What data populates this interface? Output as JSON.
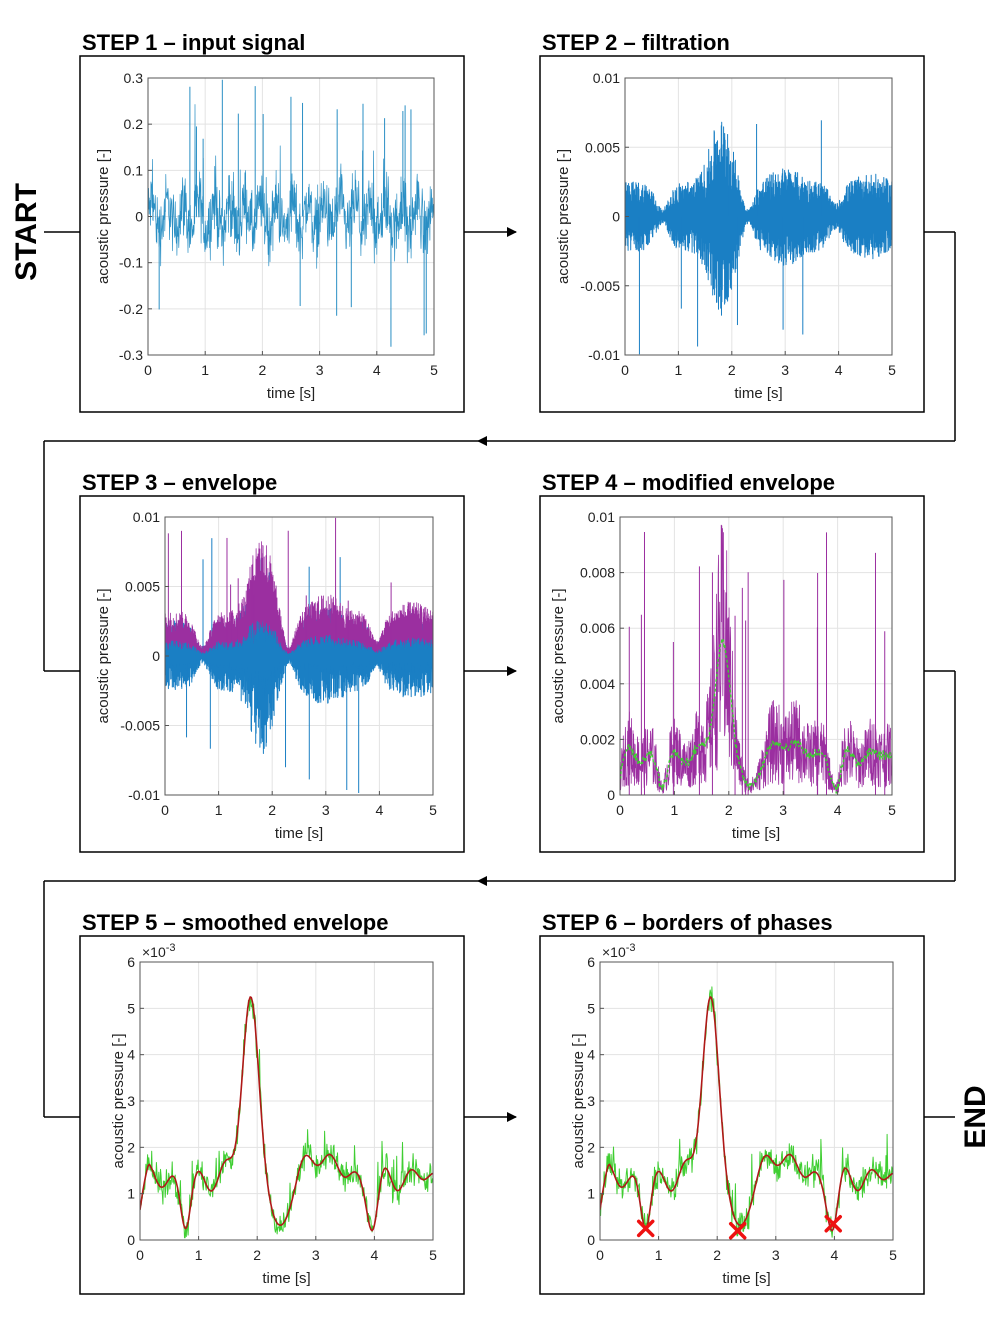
{
  "start_label": "START",
  "end_label": "END",
  "colors": {
    "raw_blue": "#2a8fc4",
    "filtered_blue": "#1a7fc4",
    "envelope_purple": "#9b2fa0",
    "modified_green": "#3fce32",
    "smoothed_red": "#b01818",
    "marker_red": "#ee1111"
  },
  "steps": [
    {
      "title": "STEP 1 – input signal",
      "chart_data": {
        "type": "line",
        "series": [
          {
            "name": "input signal",
            "description": "noisy acoustic signal with spikes"
          }
        ],
        "xlabel": "time [s]",
        "ylabel": "acoustic pressure [-]",
        "xlim": [
          0,
          5
        ],
        "ylim": [
          -0.3,
          0.3
        ],
        "xticks": [
          0,
          1,
          2,
          3,
          4,
          5
        ],
        "yticks": [
          -0.3,
          -0.2,
          -0.1,
          0,
          0.1,
          0.2,
          0.3
        ],
        "ytick_labels": [
          "-0.3",
          "-0.2",
          "-0.1",
          "0",
          "0.1",
          "0.2",
          "0.3"
        ],
        "exponent": "",
        "grid": true
      }
    },
    {
      "title": "STEP 2 – filtration",
      "chart_data": {
        "type": "line",
        "series": [
          {
            "name": "filtered signal",
            "description": "filtered signal, amplitude peak near 1.8 s"
          }
        ],
        "xlabel": "time [s]",
        "ylabel": "acoustic pressure [-]",
        "xlim": [
          0,
          5
        ],
        "ylim": [
          -0.01,
          0.01
        ],
        "xticks": [
          0,
          1,
          2,
          3,
          4,
          5
        ],
        "yticks": [
          -0.01,
          -0.005,
          0,
          0.005,
          0.01
        ],
        "ytick_labels": [
          "-0.01",
          "-0.005",
          "0",
          "0.005",
          "0.01"
        ],
        "exponent": "",
        "grid": true
      }
    },
    {
      "title": "STEP 3 – envelope",
      "chart_data": {
        "type": "line",
        "series": [
          {
            "name": "filtered signal",
            "description": "blue filtered signal"
          },
          {
            "name": "envelope",
            "description": "purple envelope over positive half"
          }
        ],
        "xlabel": "time [s]",
        "ylabel": "acoustic pressure [-]",
        "xlim": [
          0,
          5
        ],
        "ylim": [
          -0.01,
          0.01
        ],
        "xticks": [
          0,
          1,
          2,
          3,
          4,
          5
        ],
        "yticks": [
          -0.01,
          -0.005,
          0,
          0.005,
          0.01
        ],
        "ytick_labels": [
          "-0.01",
          "-0.005",
          "0",
          "0.005",
          "0.01"
        ],
        "exponent": "",
        "grid": true
      }
    },
    {
      "title": "STEP 4 – modified envelope",
      "chart_data": {
        "type": "line",
        "series": [
          {
            "name": "envelope",
            "description": "purple envelope"
          },
          {
            "name": "modified envelope",
            "description": "green dashed modified envelope"
          }
        ],
        "xlabel": "time [s]",
        "ylabel": "acoustic pressure [-]",
        "xlim": [
          0,
          5
        ],
        "ylim": [
          0,
          0.01
        ],
        "xticks": [
          0,
          1,
          2,
          3,
          4,
          5
        ],
        "yticks": [
          0,
          0.002,
          0.004,
          0.006,
          0.008,
          0.01
        ],
        "ytick_labels": [
          "0",
          "0.002",
          "0.004",
          "0.006",
          "0.008",
          "0.01"
        ],
        "exponent": "",
        "grid": true
      }
    },
    {
      "title": "STEP 5 – smoothed envelope",
      "chart_data": {
        "type": "line",
        "series": [
          {
            "name": "modified envelope",
            "description": "green noisy envelope"
          },
          {
            "name": "smoothed envelope",
            "description": "red smoothed curve"
          }
        ],
        "xlabel": "time [s]",
        "ylabel": "acoustic pressure [-]",
        "xlim": [
          0,
          5
        ],
        "ylim": [
          0,
          6
        ],
        "xticks": [
          0,
          1,
          2,
          3,
          4,
          5
        ],
        "yticks": [
          0,
          1,
          2,
          3,
          4,
          5,
          6
        ],
        "ytick_labels": [
          "0",
          "1",
          "2",
          "3",
          "4",
          "5",
          "6"
        ],
        "exponent": "×10",
        "exponent_power": "-3",
        "grid": true
      }
    },
    {
      "title": "STEP 6 – borders of phases",
      "chart_data": {
        "type": "line",
        "series": [
          {
            "name": "modified envelope",
            "description": "green noisy envelope"
          },
          {
            "name": "smoothed envelope",
            "description": "red smoothed curve"
          }
        ],
        "markers": [
          {
            "x": 0.78,
            "y": 0.25
          },
          {
            "x": 2.35,
            "y": 0.2
          },
          {
            "x": 3.98,
            "y": 0.35
          }
        ],
        "xlabel": "time [s]",
        "ylabel": "acoustic pressure [-]",
        "xlim": [
          0,
          5
        ],
        "ylim": [
          0,
          6
        ],
        "xticks": [
          0,
          1,
          2,
          3,
          4,
          5
        ],
        "yticks": [
          0,
          1,
          2,
          3,
          4,
          5,
          6
        ],
        "ytick_labels": [
          "0",
          "1",
          "2",
          "3",
          "4",
          "5",
          "6"
        ],
        "exponent": "×10",
        "exponent_power": "-3",
        "grid": true
      }
    }
  ]
}
